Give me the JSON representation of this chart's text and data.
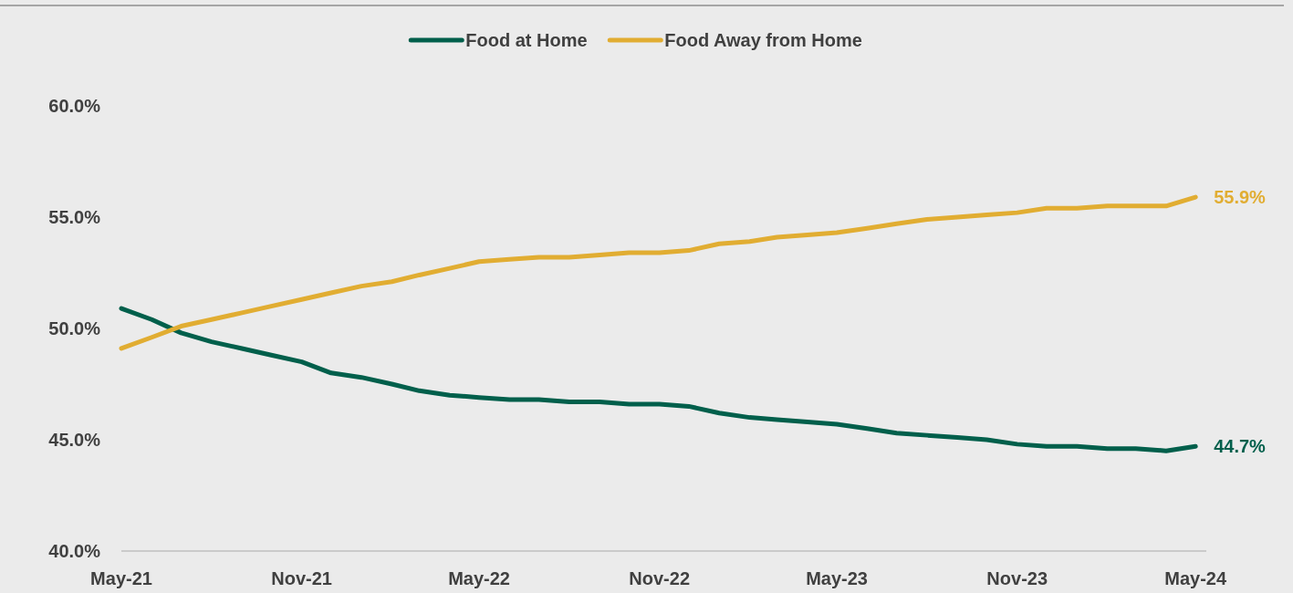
{
  "chart_data": {
    "type": "line",
    "x": [
      "2021-05",
      "2021-06",
      "2021-07",
      "2021-08",
      "2021-09",
      "2021-10",
      "2021-11",
      "2021-12",
      "2022-01",
      "2022-02",
      "2022-03",
      "2022-04",
      "2022-05",
      "2022-06",
      "2022-07",
      "2022-08",
      "2022-09",
      "2022-10",
      "2022-11",
      "2022-12",
      "2023-01",
      "2023-02",
      "2023-03",
      "2023-04",
      "2023-05",
      "2023-06",
      "2023-07",
      "2023-08",
      "2023-09",
      "2023-10",
      "2023-11",
      "2023-12",
      "2024-01",
      "2024-02",
      "2024-03",
      "2024-04",
      "2024-05"
    ],
    "series": [
      {
        "name": "Food at Home",
        "color": "#005f4b",
        "values": [
          50.9,
          50.4,
          49.8,
          49.4,
          49.1,
          48.8,
          48.5,
          48.0,
          47.8,
          47.5,
          47.2,
          47.0,
          46.9,
          46.8,
          46.8,
          46.7,
          46.7,
          46.6,
          46.6,
          46.5,
          46.2,
          46.0,
          45.9,
          45.8,
          45.7,
          45.5,
          45.3,
          45.2,
          45.1,
          45.0,
          44.8,
          44.7,
          44.7,
          44.6,
          44.6,
          44.5,
          44.7
        ]
      },
      {
        "name": "Food Away from Home",
        "color": "#e1ad32",
        "values": [
          49.1,
          49.6,
          50.1,
          50.4,
          50.7,
          51.0,
          51.3,
          51.6,
          51.9,
          52.1,
          52.4,
          52.7,
          53.0,
          53.1,
          53.2,
          53.2,
          53.3,
          53.4,
          53.4,
          53.5,
          53.8,
          53.9,
          54.1,
          54.2,
          54.3,
          54.5,
          54.7,
          54.9,
          55.0,
          55.1,
          55.2,
          55.4,
          55.4,
          55.5,
          55.5,
          55.5,
          55.9
        ]
      }
    ],
    "xlim": [
      "2021-05",
      "2024-05-12"
    ],
    "xticks": [
      {
        "value": "2021-05",
        "label": "May-21"
      },
      {
        "value": "2021-11",
        "label": "Nov-21"
      },
      {
        "value": "2022-05",
        "label": "May-22"
      },
      {
        "value": "2022-11",
        "label": "Nov-22"
      },
      {
        "value": "2023-05",
        "label": "May-23"
      },
      {
        "value": "2023-11",
        "label": "Nov-23"
      },
      {
        "value": "2024-05",
        "label": "May-24"
      }
    ],
    "ylim": [
      40,
      60
    ],
    "yticks": [
      {
        "value": 40,
        "label": "40.0%"
      },
      {
        "value": 45,
        "label": "45.0%"
      },
      {
        "value": 50,
        "label": "50.0%"
      },
      {
        "value": 55,
        "label": "55.0%"
      },
      {
        "value": 60,
        "label": "60.0%"
      }
    ],
    "annotations": [
      {
        "text": "44.7%",
        "x": "2024-05",
        "y": 44.7
      },
      {
        "text": "55.9%",
        "x": "2024-05",
        "y": 55.9
      }
    ],
    "grid": false,
    "legend": "top",
    "line_style": "solid",
    "marker": "none"
  }
}
